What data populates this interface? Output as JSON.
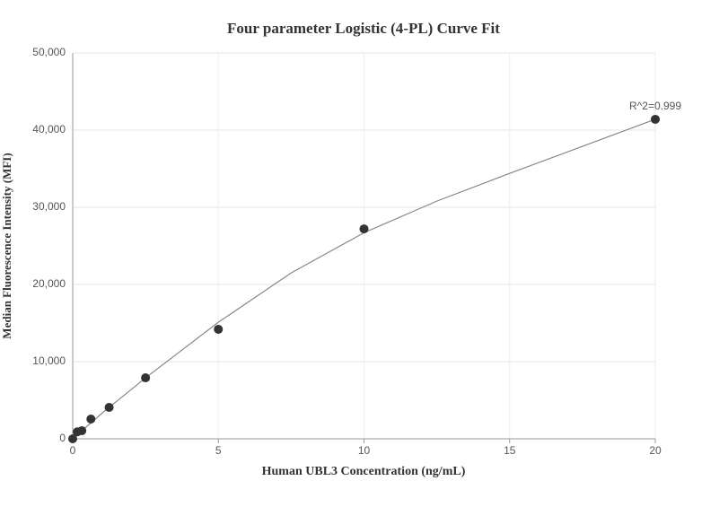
{
  "chart_data": {
    "type": "scatter",
    "title": "Four parameter Logistic (4-PL) Curve Fit",
    "xlabel": "Human UBL3 Concentration (ng/mL)",
    "ylabel": "Median Fluorescence Intensity (MFI)",
    "annotation": "R^2=0.999",
    "xlim": [
      0,
      20
    ],
    "xticks": [
      0,
      5,
      10,
      15,
      20
    ],
    "ylim": [
      0,
      50000
    ],
    "yticks": [
      0,
      {
        "value": 10000,
        "label": "10,000"
      },
      {
        "value": 20000,
        "label": "20,000"
      },
      {
        "value": 30000,
        "label": "30,000"
      },
      {
        "value": 40000,
        "label": "40,000"
      },
      {
        "value": 50000,
        "label": "50,000"
      }
    ],
    "grid": true,
    "series": [
      {
        "color": "#333333",
        "x": [
          0,
          0.156,
          0.3125,
          0.625,
          1.25,
          2.5,
          5,
          10,
          20
        ],
        "values": [
          0,
          900,
          1050,
          2560,
          4070,
          7900,
          14190,
          27200,
          41400
        ]
      },
      {
        "color": "#888888",
        "x": [
          0,
          1,
          2.5,
          5,
          7.5,
          10,
          12.5,
          15,
          17.5,
          20
        ],
        "values": [
          0,
          3300,
          7900,
          15100,
          21500,
          26700,
          30800,
          34400,
          37900,
          41400
        ]
      }
    ]
  }
}
